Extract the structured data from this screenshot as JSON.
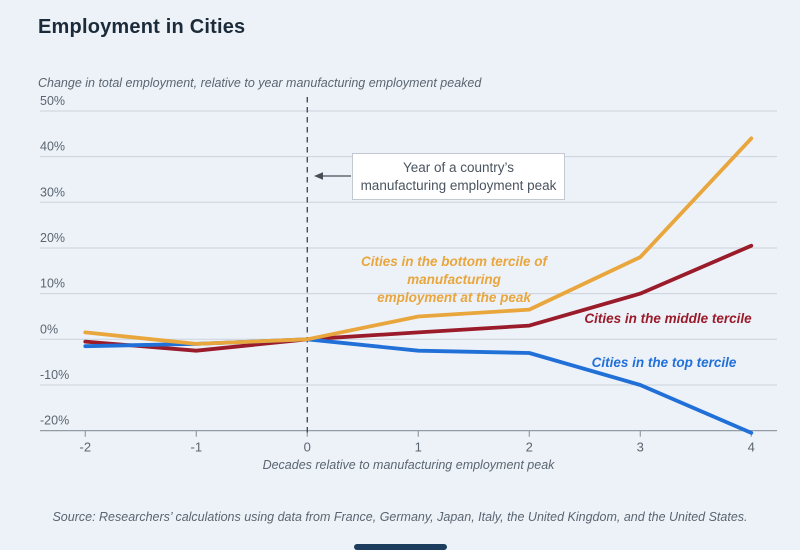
{
  "page": {
    "title": "Employment in Cities",
    "subtitle": "Change in total employment, relative to year manufacturing employment peaked",
    "source": "Source: Researchers’ calculations using data from France, Germany, Japan, Italy, the United Kingdom, and the United States."
  },
  "annotation": {
    "line1": "Year of a country’s",
    "line2": "manufacturing employment peak"
  },
  "series_labels": {
    "bottom": {
      "line1": "Cities in the bottom tercile of manufacturing",
      "line2": "employment at the peak"
    },
    "middle": "Cities in the middle tercile",
    "top": "Cities in the top tercile"
  },
  "colors": {
    "background": "#EDF2F9",
    "title_text": "#1C2B39",
    "muted_text": "#5B6570",
    "gridline": "#CBD1DA",
    "axis_line": "#949CA6",
    "dashed_line": "#464E59",
    "annotation_border": "#C3C9D0",
    "footer_bar": "#1C3D5D",
    "bottom_tercile": "#E9A63C",
    "middle_tercile": "#9A1B2A",
    "top_tercile": "#2170D8"
  },
  "chart_data": {
    "type": "line",
    "title": "Employment in Cities",
    "xlabel": "Decades relative to manufacturing employment peak",
    "ylabel": "Change in total employment, relative to year manufacturing employment peaked",
    "x": [
      -2,
      -1,
      0,
      1,
      2,
      3,
      4
    ],
    "series": [
      {
        "name": "Cities in the bottom tercile of manufacturing employment at the peak",
        "color": "#E9A63C",
        "values": [
          1.5,
          -1,
          0,
          5,
          6.5,
          18,
          44
        ]
      },
      {
        "name": "Cities in the middle tercile",
        "color": "#9A1B2A",
        "values": [
          -0.5,
          -2.5,
          0,
          1.5,
          3,
          10,
          20.5
        ]
      },
      {
        "name": "Cities in the top tercile",
        "color": "#2170D8",
        "values": [
          -1.5,
          -1,
          0,
          -2.5,
          -3,
          -10,
          -20.5
        ]
      }
    ],
    "ylim": [
      -20,
      50
    ],
    "ytick_step": 10,
    "ytick_suffix": "%",
    "xlim": [
      -2,
      4
    ],
    "grid": "horizontal",
    "legend_position": "inline-labels",
    "reference_line_x": 0
  }
}
